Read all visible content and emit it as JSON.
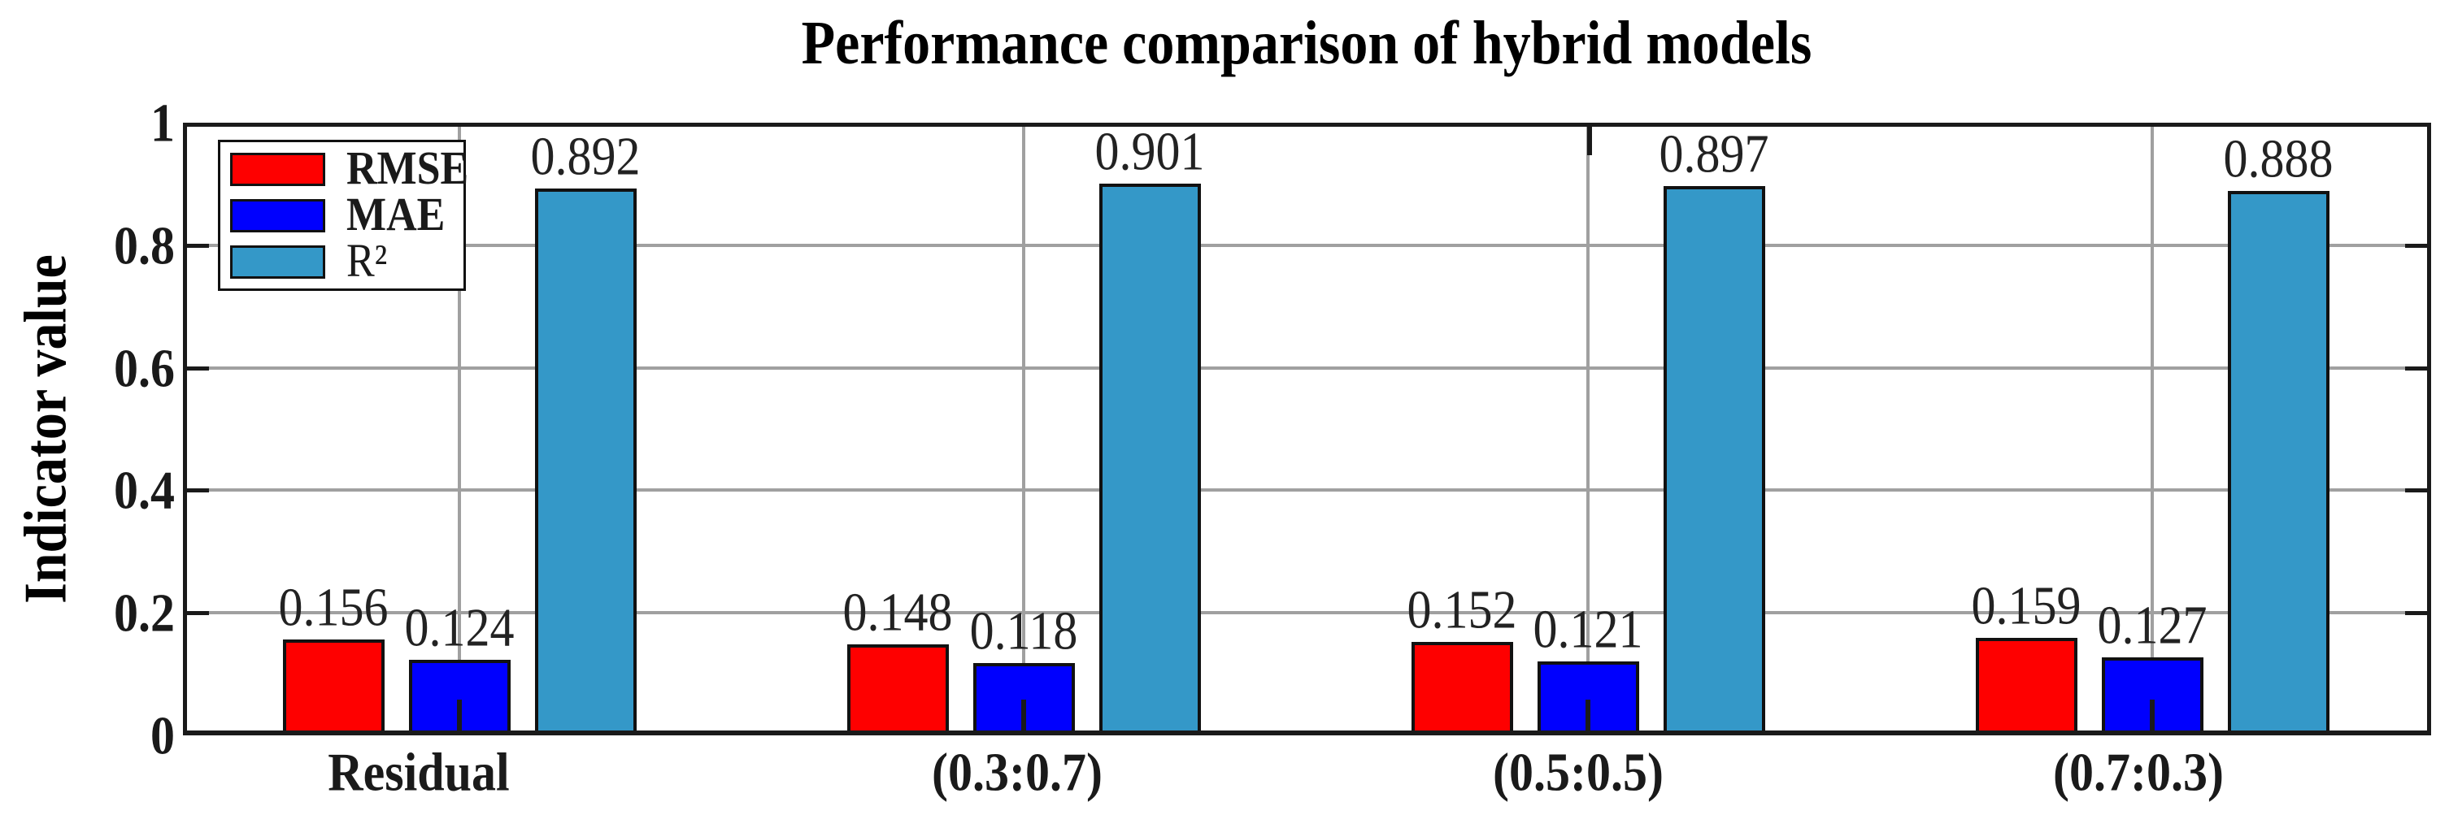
{
  "figure": {
    "background": "#ffffff"
  },
  "chart_data": {
    "type": "bar",
    "title": "Performance comparison of hybrid models",
    "xlabel": "",
    "ylabel": "Indicator value",
    "categories": [
      "Residual",
      "(0.3:0.7)",
      "(0.5:0.5)",
      "(0.7:0.3)"
    ],
    "series": [
      {
        "name": "RMSE",
        "color": "#fe0000",
        "legend_bold": true,
        "values": [
          0.156,
          0.148,
          0.152,
          0.159
        ]
      },
      {
        "name": "MAE",
        "color": "#0000fe",
        "legend_bold": true,
        "values": [
          0.124,
          0.118,
          0.121,
          0.127
        ]
      },
      {
        "name": "R²",
        "color": "#3498c8",
        "legend_bold": false,
        "values": [
          0.892,
          0.901,
          0.897,
          0.888
        ]
      }
    ],
    "ylim": [
      0,
      1
    ],
    "yticks": [
      1,
      0.8,
      0.6,
      0.4,
      0.2,
      0
    ],
    "ytick_labels": [
      "1",
      "0.8",
      "0.6",
      "0.4",
      "0.2",
      "0"
    ],
    "value_labels": true,
    "value_label_decimals": 3,
    "grid": true,
    "grid_color": "#a0a0a0",
    "axis_color": "#1a1a1a",
    "text_color": "#1a1a1a",
    "legend_position": "top-left"
  }
}
